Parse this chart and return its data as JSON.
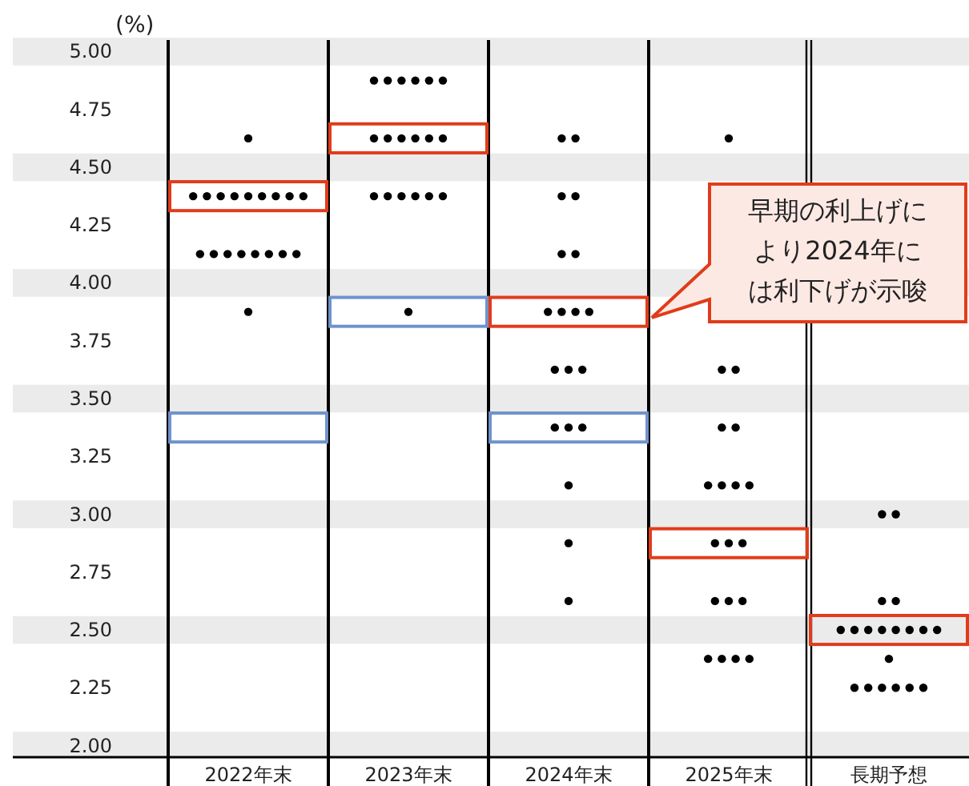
{
  "chart_data": {
    "type": "scatter",
    "ylabel": "(%)",
    "categories": [
      "2022年末",
      "2023年末",
      "2024年末",
      "2025年末",
      "長期予想"
    ],
    "ylim": [
      1.95,
      5.05
    ],
    "yticks": [
      {
        "value": 2,
        "label": "2.00"
      },
      {
        "value": 2.25,
        "label": "2.25"
      },
      {
        "value": 2.5,
        "label": "2.50"
      },
      {
        "value": 2.75,
        "label": "2.75"
      },
      {
        "value": 3,
        "label": "3.00"
      },
      {
        "value": 3.25,
        "label": "3.25"
      },
      {
        "value": 3.5,
        "label": "3.50"
      },
      {
        "value": 3.75,
        "label": "3.75"
      },
      {
        "value": 4,
        "label": "4.00"
      },
      {
        "value": 4.25,
        "label": "4.25"
      },
      {
        "value": 4.5,
        "label": "4.50"
      },
      {
        "value": 4.75,
        "label": "4.75"
      },
      {
        "value": 5,
        "label": "5.00"
      }
    ],
    "series": [
      {
        "marker": "circle",
        "color": "#000000",
        "x": [
          "2022年末",
          "2022年末",
          "2022年末",
          "2022年末",
          "2022年末",
          "2022年末",
          "2022年末",
          "2022年末",
          "2022年末",
          "2022年末",
          "2022年末",
          "2022年末",
          "2022年末",
          "2022年末",
          "2022年末",
          "2022年末",
          "2022年末",
          "2022年末",
          "2022年末",
          "2023年末",
          "2023年末",
          "2023年末",
          "2023年末",
          "2023年末",
          "2023年末",
          "2023年末",
          "2023年末",
          "2023年末",
          "2023年末",
          "2023年末",
          "2023年末",
          "2023年末",
          "2023年末",
          "2023年末",
          "2023年末",
          "2023年末",
          "2023年末",
          "2023年末",
          "2024年末",
          "2024年末",
          "2024年末",
          "2024年末",
          "2024年末",
          "2024年末",
          "2024年末",
          "2024年末",
          "2024年末",
          "2024年末",
          "2024年末",
          "2024年末",
          "2024年末",
          "2024年末",
          "2024年末",
          "2024年末",
          "2024年末",
          "2024年末",
          "2024年末",
          "2025年末",
          "2025年末",
          "2025年末",
          "2025年末",
          "2025年末",
          "2025年末",
          "2025年末",
          "2025年末",
          "2025年末",
          "2025年末",
          "2025年末",
          "2025年末",
          "2025年末",
          "2025年末",
          "2025年末",
          "2025年末",
          "2025年末",
          "2025年末",
          "2025年末",
          "長期予想",
          "長期予想",
          "長期予想",
          "長期予想",
          "長期予想",
          "長期予想",
          "長期予想",
          "長期予想",
          "長期予想",
          "長期予想",
          "長期予想",
          "長期予想",
          "長期予想",
          "長期予想",
          "長期予想",
          "長期予想",
          "長期予想",
          "長期予想",
          "長期予想"
        ],
        "values": [
          4.625,
          4.375,
          4.375,
          4.375,
          4.375,
          4.375,
          4.375,
          4.375,
          4.375,
          4.375,
          4.125,
          4.125,
          4.125,
          4.125,
          4.125,
          4.125,
          4.125,
          4.125,
          3.875,
          4.875,
          4.875,
          4.875,
          4.875,
          4.875,
          4.875,
          4.625,
          4.625,
          4.625,
          4.625,
          4.625,
          4.625,
          4.375,
          4.375,
          4.375,
          4.375,
          4.375,
          4.375,
          3.875,
          4.625,
          4.625,
          4.375,
          4.375,
          4.125,
          4.125,
          3.875,
          3.875,
          3.875,
          3.875,
          3.625,
          3.625,
          3.625,
          3.375,
          3.375,
          3.375,
          3.125,
          2.875,
          2.625,
          4.625,
          3.625,
          3.625,
          3.375,
          3.375,
          3.125,
          3.125,
          3.125,
          3.125,
          2.875,
          2.875,
          2.875,
          2.625,
          2.625,
          2.625,
          2.375,
          2.375,
          2.375,
          2.375,
          3,
          3,
          2.625,
          2.625,
          2.5,
          2.5,
          2.5,
          2.5,
          2.5,
          2.5,
          2.5,
          2.5,
          2.375,
          2.25,
          2.25,
          2.25,
          2.25,
          2.25,
          2.25
        ]
      },
      {
        "type": "bar",
        "color": "#e03c1a",
        "base": [
          4.3125,
          4.5625,
          3.8125,
          2.8125,
          2.4375
        ],
        "values": [
          0.125,
          0.125,
          0.125,
          0.125,
          0.125
        ]
      },
      {
        "type": "bar",
        "color": "#7092cc",
        "base": [
          3.3125,
          3.8125,
          3.3125,
          null,
          null
        ],
        "values": [
          0.125,
          0.125,
          0.125,
          null,
          null
        ]
      }
    ],
    "bands": [
      {
        "axis": "y",
        "from": 4.94,
        "to": 5.06,
        "color": "#ebebeb"
      },
      {
        "axis": "y",
        "from": 4.44,
        "to": 4.56,
        "color": "#ebebeb"
      },
      {
        "axis": "y",
        "from": 3.94,
        "to": 4.06,
        "color": "#ebebeb"
      },
      {
        "axis": "y",
        "from": 3.44,
        "to": 3.56,
        "color": "#ebebeb"
      },
      {
        "axis": "y",
        "from": 2.94,
        "to": 3.06,
        "color": "#ebebeb"
      },
      {
        "axis": "y",
        "from": 2.44,
        "to": 2.56,
        "color": "#ebebeb"
      },
      {
        "axis": "y",
        "from": 1.95,
        "to": 2.06,
        "color": "#ebebeb"
      }
    ],
    "annotations": [
      "早期の利上げにより2024年には利下げが示唆"
    ]
  }
}
